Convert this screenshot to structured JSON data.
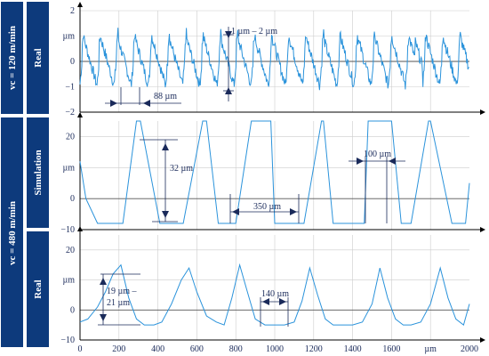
{
  "colors": {
    "panel": "#0d3a7c",
    "line": "#2b93db",
    "grid": "#cccccc",
    "axis": "#000000",
    "annotation": "#1a2a5a"
  },
  "sidebar": {
    "speed_top": "vc = 120 m/min",
    "speed_bottom": "vc = 480 m/min",
    "rows": [
      "Real",
      "Simulation",
      "Real"
    ]
  },
  "chart_data": [
    {
      "type": "line",
      "row_label": "Real",
      "ylabel": "µm",
      "xlim": [
        0,
        2000
      ],
      "ylim": [
        -2,
        2
      ],
      "y_ticks": [
        "2",
        "µm",
        "0",
        "−1",
        "−2"
      ],
      "x_ticks": [],
      "profile": "rough periodic real surface, period about 88 µm",
      "annotations": [
        "1 µm – 2 µm",
        "88 µm"
      ]
    },
    {
      "type": "line",
      "row_label": "Simulation",
      "ylabel": "µm",
      "xlim": [
        0,
        2000
      ],
      "ylim": [
        -10,
        25
      ],
      "y_ticks": [
        "20",
        "µm",
        "0",
        "−10"
      ],
      "x_ticks": [],
      "x": [
        0,
        30,
        90,
        220,
        290,
        310,
        410,
        420,
        470,
        520,
        530,
        630,
        650,
        710,
        765,
        800,
        880,
        980,
        1000,
        1090,
        1140,
        1150,
        1240,
        1250,
        1300,
        1340,
        1360,
        1460,
        1480,
        1600,
        1650,
        1680,
        1700,
        1790,
        1800,
        1910,
        1960,
        1980,
        2000
      ],
      "values": [
        12,
        0,
        -8,
        -8,
        25,
        25,
        -8,
        -8,
        -8,
        -8,
        -8,
        25,
        25,
        -8,
        -8,
        -8,
        25,
        25,
        -8,
        -8,
        -8,
        -8,
        25,
        25,
        -8,
        -8,
        -8,
        -8,
        25,
        25,
        -8,
        -8,
        -8,
        25,
        25,
        -8,
        -8,
        -8,
        5
      ],
      "annotations": [
        "32 µm",
        "350 µm",
        "100 µm"
      ]
    },
    {
      "type": "line",
      "row_label": "Real",
      "ylabel": "µm",
      "xlim": [
        0,
        2000
      ],
      "ylim": [
        -10,
        25
      ],
      "y_ticks": [
        "20",
        "µm",
        "0",
        "−10"
      ],
      "x_ticks": [
        "0",
        "200",
        "400",
        "600",
        "800",
        "1000",
        "1200",
        "1400",
        "1600",
        "µm",
        "2000"
      ],
      "x": [
        0,
        40,
        90,
        130,
        170,
        210,
        250,
        290,
        330,
        380,
        420,
        470,
        520,
        560,
        600,
        650,
        700,
        740,
        780,
        820,
        860,
        900,
        950,
        1000,
        1050,
        1100,
        1140,
        1180,
        1220,
        1260,
        1300,
        1350,
        1400,
        1450,
        1500,
        1540,
        1580,
        1620,
        1660,
        1700,
        1750,
        1800,
        1850,
        1890,
        1930,
        1970,
        2000
      ],
      "values": [
        -4,
        -3,
        1,
        6,
        12,
        15,
        4,
        -3,
        -5,
        -5,
        -4,
        2,
        10,
        14,
        6,
        -2,
        -4,
        -5,
        4,
        15,
        6,
        -3,
        -5,
        -5,
        -5,
        -4,
        3,
        14,
        5,
        -3,
        -5,
        -5,
        -5,
        -4,
        2,
        14,
        4,
        -3,
        -5,
        -5,
        -4,
        2,
        14,
        4,
        -3,
        -5,
        2
      ],
      "annotations": [
        "19 µm –",
        "21 µm",
        "140 µm"
      ]
    }
  ]
}
